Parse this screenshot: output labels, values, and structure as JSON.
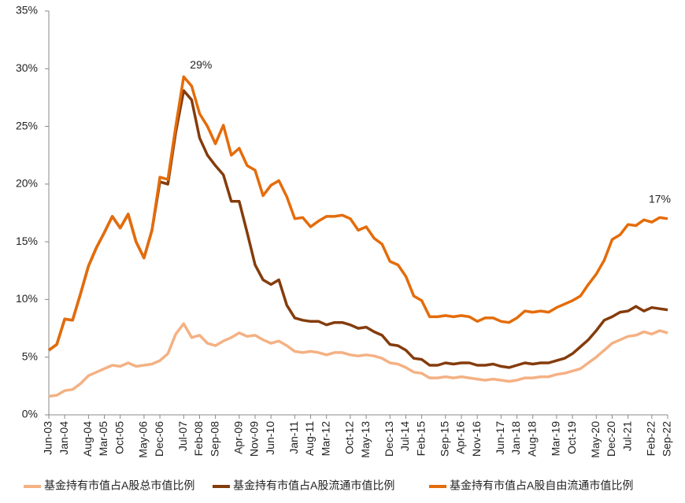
{
  "chart_data": {
    "type": "line",
    "categories": [
      "Jun-03",
      null,
      "Jan-04",
      null,
      null,
      "Aug-04",
      null,
      "Mar-05",
      null,
      "Oct-05",
      null,
      null,
      "May-06",
      null,
      "Dec-06",
      null,
      null,
      "Jul-07",
      null,
      "Feb-08",
      null,
      "Sep-08",
      null,
      null,
      "Apr-09",
      null,
      "Nov-09",
      null,
      "Jun-10",
      null,
      null,
      "Jan-11",
      null,
      "Aug-11",
      null,
      "Mar-12",
      null,
      null,
      "Oct-12",
      null,
      "May-13",
      null,
      null,
      "Dec-13",
      null,
      "Jul-14",
      null,
      "Feb-15",
      null,
      null,
      "Sep-15",
      null,
      "Apr-16",
      null,
      "Nov-16",
      null,
      null,
      "Jun-17",
      null,
      "Jan-18",
      null,
      "Aug-18",
      null,
      null,
      "Mar-19",
      null,
      "Oct-19",
      null,
      null,
      "May-20",
      null,
      "Dec-20",
      null,
      "Jul-21",
      null,
      null,
      "Feb-22",
      null,
      "Sep-22"
    ],
    "series": [
      {
        "name": "基金持有市值占A股总市值比例",
        "color": "#f4b183",
        "values": [
          1.6,
          1.7,
          2.1,
          2.2,
          2.7,
          3.4,
          3.7,
          4.0,
          4.3,
          4.2,
          4.5,
          4.2,
          4.3,
          4.4,
          4.7,
          5.3,
          7.0,
          7.9,
          6.7,
          6.9,
          6.2,
          6.0,
          6.4,
          6.7,
          7.1,
          6.8,
          6.9,
          6.5,
          6.2,
          6.4,
          6.0,
          5.5,
          5.4,
          5.5,
          5.4,
          5.2,
          5.4,
          5.4,
          5.2,
          5.1,
          5.2,
          5.1,
          4.9,
          4.5,
          4.4,
          4.1,
          3.7,
          3.6,
          3.2,
          3.2,
          3.3,
          3.2,
          3.3,
          3.2,
          3.1,
          3.0,
          3.1,
          3.0,
          2.9,
          3.0,
          3.2,
          3.2,
          3.3,
          3.3,
          3.5,
          3.6,
          3.8,
          4.0,
          4.5,
          5.0,
          5.6,
          6.2,
          6.5,
          6.8,
          6.9,
          7.2,
          7.0,
          7.3,
          7.1
        ]
      },
      {
        "name": "基金持有市值占A股流通市值比例",
        "color": "#843c0c",
        "values": [
          5.6,
          6.1,
          8.3,
          8.2,
          10.5,
          12.9,
          14.5,
          15.8,
          17.2,
          16.2,
          17.4,
          15.0,
          13.6,
          16.0,
          20.2,
          20.0,
          24.5,
          28.1,
          27.3,
          24.0,
          22.5,
          21.6,
          20.8,
          18.5,
          18.5,
          15.8,
          13.0,
          11.7,
          11.3,
          11.7,
          9.5,
          8.4,
          8.2,
          8.1,
          8.1,
          7.8,
          8.0,
          8.0,
          7.8,
          7.5,
          7.6,
          7.2,
          6.9,
          6.1,
          6.0,
          5.6,
          4.9,
          4.8,
          4.3,
          4.3,
          4.5,
          4.4,
          4.5,
          4.5,
          4.3,
          4.3,
          4.4,
          4.2,
          4.1,
          4.3,
          4.5,
          4.4,
          4.5,
          4.5,
          4.7,
          4.9,
          5.3,
          5.9,
          6.5,
          7.3,
          8.2,
          8.5,
          8.9,
          9.0,
          9.4,
          9.0,
          9.3,
          9.2,
          9.1
        ]
      },
      {
        "name": "基金持有市值占A股自由流通市值比例",
        "color": "#e46c0a",
        "values": [
          5.6,
          6.1,
          8.3,
          8.2,
          10.5,
          12.9,
          14.5,
          15.8,
          17.2,
          16.2,
          17.4,
          15.0,
          13.6,
          16.0,
          20.6,
          20.4,
          25.0,
          29.3,
          28.5,
          26.1,
          25.0,
          23.5,
          25.1,
          22.5,
          23.1,
          21.6,
          21.2,
          19.0,
          19.9,
          20.3,
          18.9,
          17.0,
          17.1,
          16.3,
          16.8,
          17.2,
          17.2,
          17.3,
          17.0,
          16.0,
          16.3,
          15.3,
          14.8,
          13.3,
          13.0,
          12.0,
          10.3,
          9.9,
          8.5,
          8.5,
          8.6,
          8.5,
          8.6,
          8.5,
          8.1,
          8.4,
          8.4,
          8.1,
          8.0,
          8.4,
          9.0,
          8.9,
          9.0,
          8.9,
          9.3,
          9.6,
          9.9,
          10.3,
          11.3,
          12.2,
          13.4,
          15.2,
          15.6,
          16.5,
          16.4,
          16.9,
          16.7,
          17.1,
          17.0
        ]
      }
    ],
    "annotations": [
      "29%",
      "17%"
    ],
    "ylim": [
      0,
      35
    ],
    "yticks": [
      {
        "value": 0,
        "label": "0%"
      },
      {
        "value": 5,
        "label": "5%"
      },
      {
        "value": 10,
        "label": "10%"
      },
      {
        "value": 15,
        "label": "15%"
      },
      {
        "value": 20,
        "label": "20%"
      },
      {
        "value": 25,
        "label": "25%"
      },
      {
        "value": 30,
        "label": "30%"
      },
      {
        "value": 35,
        "label": "35%"
      }
    ],
    "grid": false,
    "legend": "bottom"
  }
}
